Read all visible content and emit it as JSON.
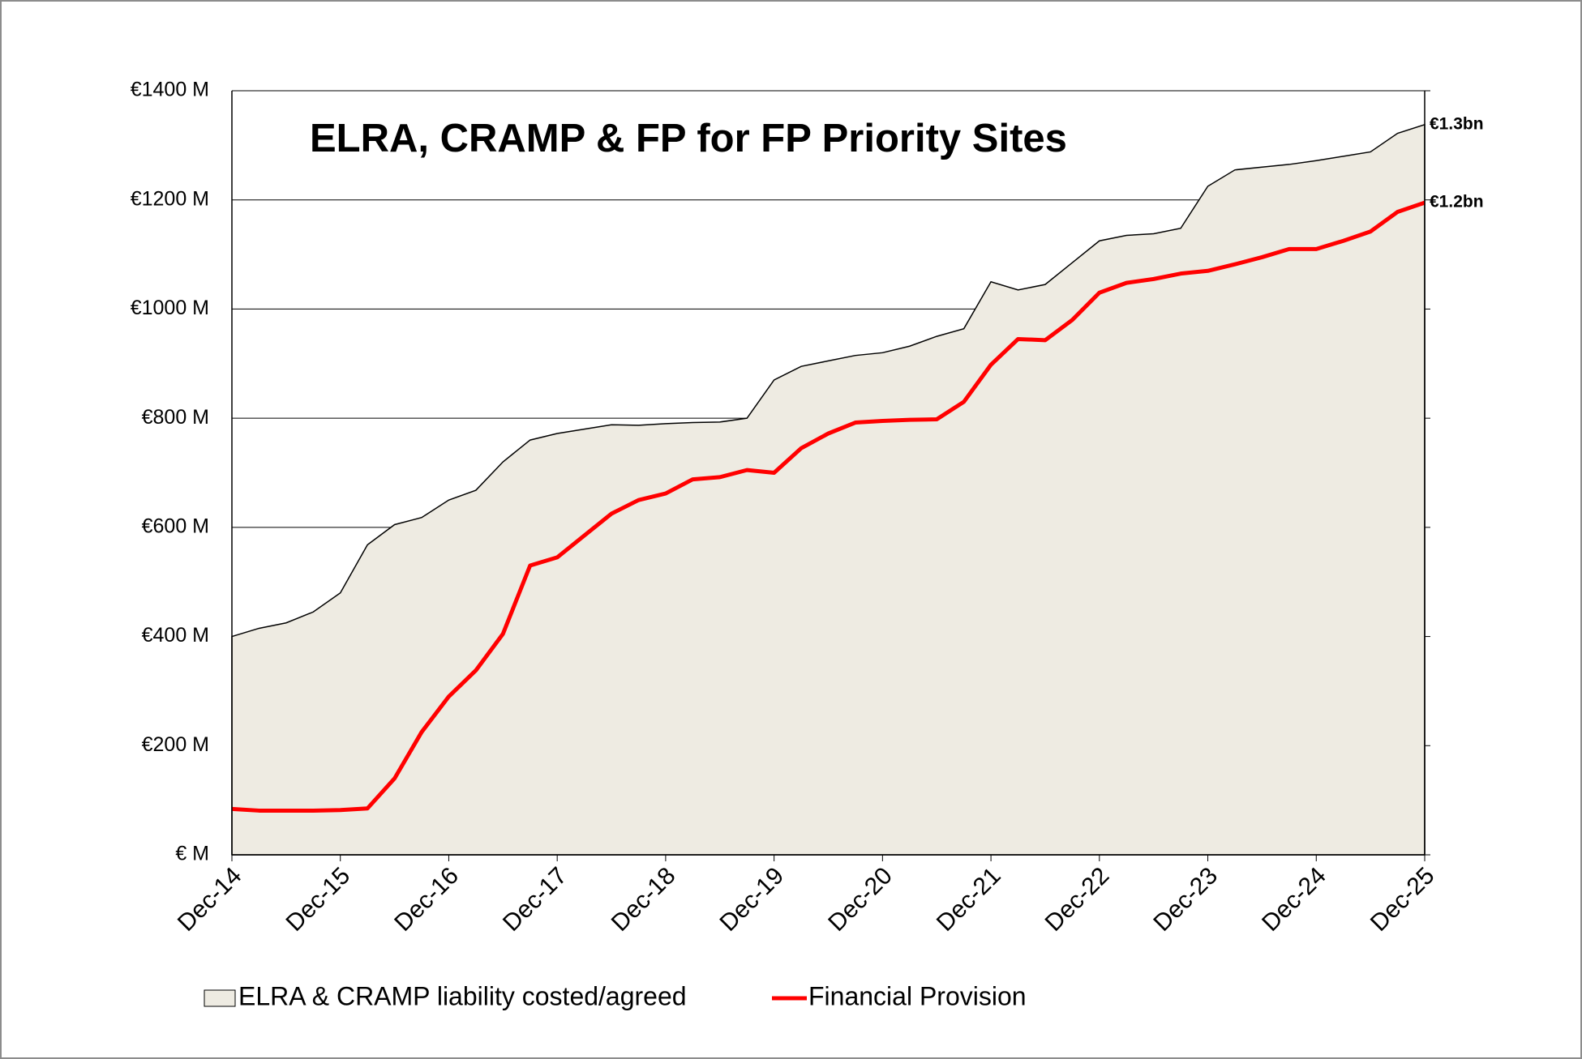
{
  "chart_data": {
    "type": "area-line",
    "title": "ELRA, CRAMP & FP for FP Priority Sites",
    "categories": [
      "Dec-14",
      null,
      null,
      null,
      "Dec-15",
      null,
      null,
      null,
      "Dec-16",
      null,
      null,
      null,
      "Dec-17",
      null,
      null,
      null,
      "Dec-18",
      null,
      null,
      null,
      "Dec-19",
      null,
      null,
      null,
      "Dec-20",
      null,
      null,
      null,
      "Dec-21",
      null,
      null,
      null,
      "Dec-22",
      null,
      null,
      null,
      "Dec-23",
      null,
      null,
      null,
      "Dec-24",
      null,
      null,
      null,
      "Dec-25"
    ],
    "series": [
      {
        "name": "ELRA & CRAMP liability costed/agreed",
        "kind": "area",
        "color": "#eeebe2",
        "values": [
          400,
          415,
          425,
          445,
          480,
          568,
          605,
          618,
          650,
          668,
          720,
          760,
          772,
          780,
          788,
          787,
          790,
          792,
          793,
          800,
          870,
          895,
          905,
          915,
          920,
          932,
          950,
          964,
          1050,
          1035,
          1045,
          1085,
          1125,
          1135,
          1138,
          1148,
          1225,
          1255,
          1260,
          1265,
          1272,
          1280,
          1288,
          1322,
          1338
        ]
      },
      {
        "name": "Financial Provision",
        "kind": "line",
        "color": "#ff0000",
        "values": [
          84,
          81,
          81,
          81,
          82,
          85,
          140,
          225,
          290,
          338,
          405,
          530,
          545,
          585,
          625,
          650,
          662,
          688,
          692,
          705,
          700,
          745,
          772,
          792,
          795,
          797,
          798,
          830,
          898,
          945,
          943,
          980,
          1030,
          1048,
          1055,
          1065,
          1070,
          1082,
          1095,
          1110,
          1110,
          1125,
          1142,
          1178,
          1195
        ]
      }
    ],
    "annotations": [
      {
        "text": "€1.3bn",
        "value": 1338
      },
      {
        "text": "€1.2bn",
        "value": 1195
      }
    ],
    "ylim": [
      0,
      1400
    ],
    "yticks": [
      {
        "value": 0,
        "label": "€ M"
      },
      {
        "value": 200,
        "label": "€200 M"
      },
      {
        "value": 400,
        "label": "€400 M"
      },
      {
        "value": 600,
        "label": "€600 M"
      },
      {
        "value": 800,
        "label": "€800 M"
      },
      {
        "value": 1000,
        "label": "€1000 M"
      },
      {
        "value": 1200,
        "label": "€1200 M"
      },
      {
        "value": 1400,
        "label": "€1400 M"
      }
    ],
    "grid": true
  }
}
